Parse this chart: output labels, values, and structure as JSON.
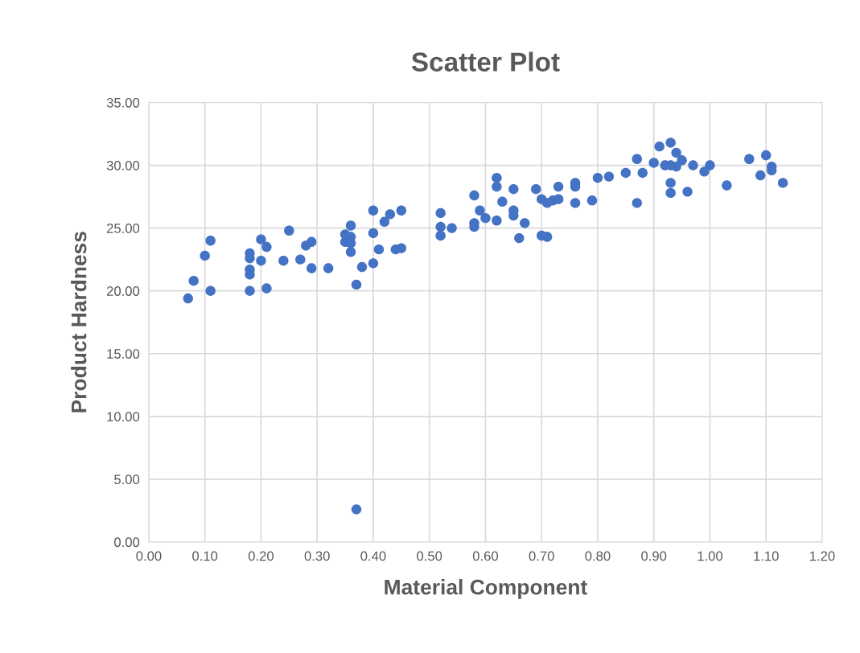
{
  "chart_data": {
    "type": "scatter",
    "title": "Scatter Plot",
    "xlabel": "Material Component",
    "ylabel": "Product Hardness",
    "x": [
      0.07,
      0.08,
      0.1,
      0.11,
      0.11,
      0.18,
      0.18,
      0.18,
      0.18,
      0.18,
      0.2,
      0.2,
      0.21,
      0.21,
      0.24,
      0.25,
      0.27,
      0.28,
      0.29,
      0.29,
      0.32,
      0.35,
      0.35,
      0.36,
      0.36,
      0.36,
      0.36,
      0.37,
      0.37,
      0.38,
      0.4,
      0.4,
      0.4,
      0.41,
      0.42,
      0.43,
      0.44,
      0.45,
      0.45,
      0.52,
      0.52,
      0.52,
      0.54,
      0.58,
      0.58,
      0.58,
      0.59,
      0.6,
      0.62,
      0.62,
      0.62,
      0.63,
      0.65,
      0.65,
      0.65,
      0.66,
      0.67,
      0.69,
      0.7,
      0.7,
      0.71,
      0.71,
      0.72,
      0.73,
      0.73,
      0.76,
      0.76,
      0.76,
      0.79,
      0.8,
      0.82,
      0.85,
      0.87,
      0.87,
      0.88,
      0.9,
      0.91,
      0.92,
      0.93,
      0.93,
      0.93,
      0.93,
      0.94,
      0.94,
      0.95,
      0.96,
      0.97,
      0.99,
      1.0,
      1.03,
      1.07,
      1.09,
      1.1,
      1.11,
      1.11,
      1.13
    ],
    "values": [
      19.4,
      20.8,
      22.8,
      24.0,
      20.0,
      23.0,
      22.6,
      21.7,
      21.3,
      20.0,
      24.1,
      22.4,
      23.5,
      20.2,
      22.4,
      24.8,
      22.5,
      23.6,
      23.9,
      21.8,
      21.8,
      24.5,
      23.9,
      25.2,
      24.3,
      23.8,
      23.1,
      20.5,
      2.6,
      21.9,
      26.4,
      24.6,
      22.2,
      23.3,
      25.5,
      26.1,
      23.3,
      26.4,
      23.4,
      26.2,
      25.1,
      24.4,
      25.0,
      27.6,
      25.4,
      25.1,
      26.4,
      25.8,
      29.0,
      28.3,
      25.6,
      27.1,
      28.1,
      26.4,
      26.0,
      24.2,
      25.4,
      28.1,
      27.3,
      24.4,
      27.0,
      24.3,
      27.2,
      28.3,
      27.3,
      28.6,
      28.3,
      27.0,
      27.2,
      29.0,
      29.1,
      29.4,
      30.5,
      27.0,
      29.4,
      30.2,
      31.5,
      30.0,
      31.8,
      30.0,
      28.6,
      27.8,
      31.0,
      29.9,
      30.4,
      27.9,
      30.0,
      29.5,
      30.0,
      28.4,
      30.5,
      29.2,
      30.8,
      29.9,
      29.6,
      28.6
    ],
    "color": "#4472c4",
    "marker": "circle",
    "xlim": [
      0,
      1.2
    ],
    "xticks": [
      {
        "value": 0,
        "label": "0.00"
      },
      {
        "value": 0.1,
        "label": "0.10"
      },
      {
        "value": 0.2,
        "label": "0.20"
      },
      {
        "value": 0.3,
        "label": "0.30"
      },
      {
        "value": 0.4,
        "label": "0.40"
      },
      {
        "value": 0.5,
        "label": "0.50"
      },
      {
        "value": 0.6,
        "label": "0.60"
      },
      {
        "value": 0.7,
        "label": "0.70"
      },
      {
        "value": 0.8,
        "label": "0.80"
      },
      {
        "value": 0.9,
        "label": "0.90"
      },
      {
        "value": 1.0,
        "label": "1.00"
      },
      {
        "value": 1.1,
        "label": "1.10"
      },
      {
        "value": 1.2,
        "label": "1.20"
      }
    ],
    "ylim": [
      0,
      35
    ],
    "yticks": [
      {
        "value": 0,
        "label": "0.00"
      },
      {
        "value": 5,
        "label": "5.00"
      },
      {
        "value": 10,
        "label": "10.00"
      },
      {
        "value": 15,
        "label": "15.00"
      },
      {
        "value": 20,
        "label": "20.00"
      },
      {
        "value": 25,
        "label": "25.00"
      },
      {
        "value": 30,
        "label": "30.00"
      },
      {
        "value": 35,
        "label": "35.00"
      }
    ],
    "grid": true
  }
}
